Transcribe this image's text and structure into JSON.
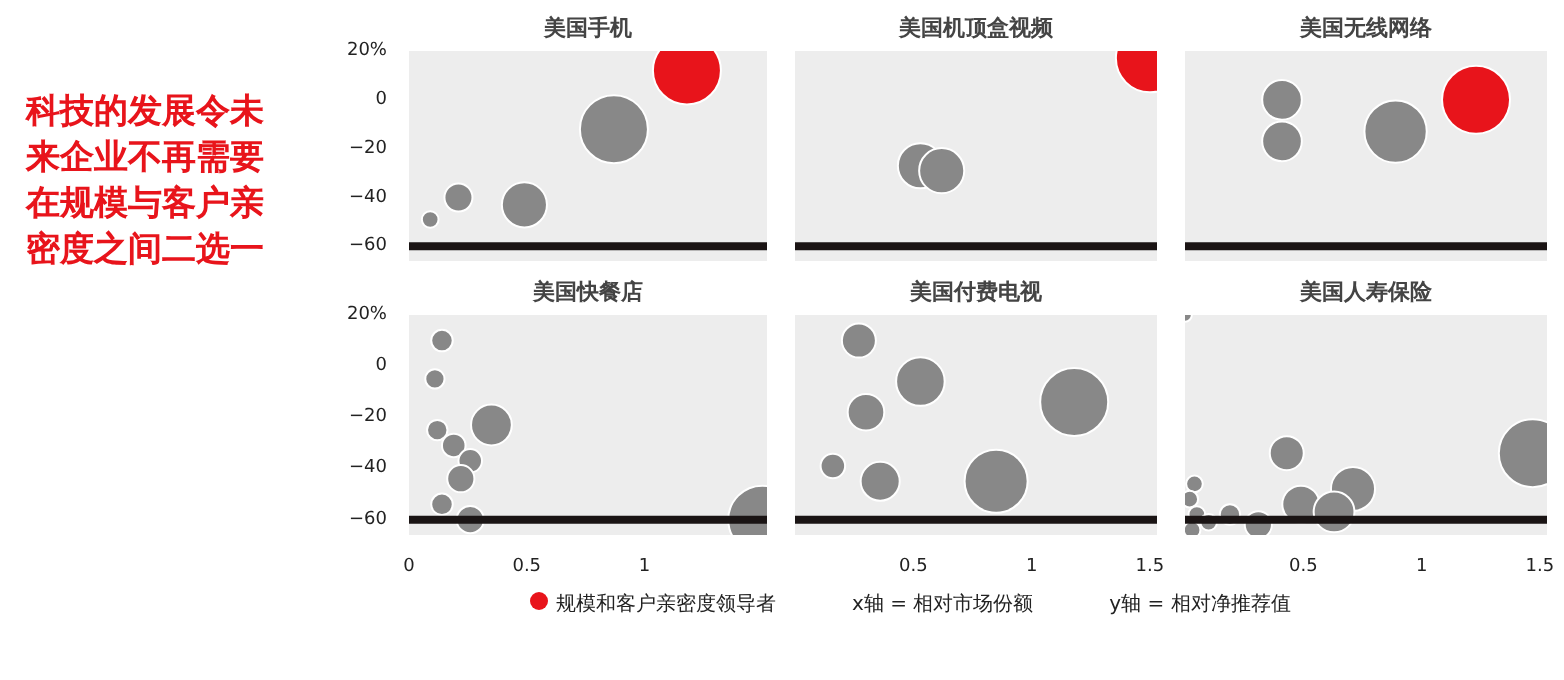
{
  "chart_data": [
    {
      "type": "other",
      "title": "科技的发展令未来企业不再需要在规模与客户亲密度之间二选一",
      "annotations": [
        "x轴 = 相对市场份额",
        "y轴 = 相对净推荐值"
      ]
    },
    {
      "type": "bubble",
      "title": "美国手机",
      "xlim": [
        0,
        1.52
      ],
      "ylim": [
        -66,
        20
      ],
      "yticks": [
        {
          "value": 20,
          "label": "20%"
        },
        0,
        -20,
        -40,
        -60
      ],
      "tick_labels": "y",
      "grid": false,
      "legend": "bottom",
      "ref_lines": [
        {
          "axis": "y",
          "value": -60,
          "color": "#1a1414"
        }
      ],
      "series": [
        {
          "color": "#888888",
          "x": [
            0.87,
            0.49,
            0.21,
            0.09
          ],
          "values": [
            -12,
            -43,
            -40,
            -49
          ],
          "sizes": [
            1,
            0.44,
            0.17,
            0.06
          ]
        },
        {
          "name": "规模和客户亲密度领导者",
          "color": "#e8141b",
          "x": [
            1.18
          ],
          "values": [
            12
          ],
          "sizes": [
            1
          ]
        }
      ]
    },
    {
      "type": "bubble",
      "title": "美国机顶盒视频",
      "xlim": [
        0,
        1.53
      ],
      "ylim": [
        -66,
        20
      ],
      "tick_labels": false,
      "grid": false,
      "ref_lines": [
        {
          "axis": "y",
          "value": -60,
          "color": "#1a1414"
        }
      ],
      "series": [
        {
          "color": "#888888",
          "x": [
            0.53,
            0.62
          ],
          "values": [
            -27,
            -29
          ],
          "sizes": [
            0.44,
            0.44
          ]
        },
        {
          "color": "#e8141b",
          "x": [
            1.5
          ],
          "values": [
            17
          ],
          "sizes": [
            1
          ]
        }
      ]
    },
    {
      "type": "bubble",
      "title": "美国无线网络",
      "xlim": [
        0,
        1.53
      ],
      "ylim": [
        -66,
        20
      ],
      "tick_labels": false,
      "grid": false,
      "ref_lines": [
        {
          "axis": "y",
          "value": -60,
          "color": "#1a1414"
        }
      ],
      "series": [
        {
          "color": "#888888",
          "x": [
            0.89,
            0.41,
            0.41
          ],
          "values": [
            -13,
            0,
            -17
          ],
          "sizes": [
            0.84,
            0.34,
            0.34
          ]
        },
        {
          "color": "#e8141b",
          "x": [
            1.23
          ],
          "values": [
            0
          ],
          "sizes": [
            1
          ]
        }
      ]
    },
    {
      "type": "bubble",
      "title": "美国快餐店",
      "xlim": [
        0,
        1.52
      ],
      "ylim": [
        -66,
        20
      ],
      "yticks": [
        {
          "value": 20,
          "label": "20%"
        },
        0,
        -20,
        -40,
        -60
      ],
      "xticks": [
        0,
        0.5,
        1
      ],
      "grid": false,
      "ref_lines": [
        {
          "axis": "y",
          "value": -60,
          "color": "#1a1414"
        }
      ],
      "series": [
        {
          "color": "#888888",
          "x": [
            0.14,
            0.11,
            0.12,
            0.35,
            0.19,
            0.26,
            0.22,
            0.14,
            0.26,
            1.5
          ],
          "values": [
            10,
            -5,
            -25,
            -23,
            -31,
            -37,
            -44,
            -54,
            -60,
            -60
          ],
          "sizes": [
            0.1,
            0.08,
            0.09,
            0.36,
            0.12,
            0.12,
            0.16,
            0.1,
            0.16,
            1
          ]
        }
      ]
    },
    {
      "type": "bubble",
      "title": "美国付费电视",
      "xlim": [
        0,
        1.53
      ],
      "ylim": [
        -66,
        20
      ],
      "xticks": [
        0.5,
        1,
        1.5
      ],
      "tick_labels": "x",
      "grid": false,
      "ref_lines": [
        {
          "axis": "y",
          "value": -60,
          "color": "#1a1414"
        }
      ],
      "series": [
        {
          "color": "#888888",
          "x": [
            0.27,
            0.53,
            0.3,
            1.18,
            0.16,
            0.36,
            0.85
          ],
          "values": [
            10,
            -6,
            -18,
            -14,
            -39,
            -45,
            -45
          ],
          "sizes": [
            0.25,
            0.51,
            0.29,
            1,
            0.13,
            0.33,
            0.86
          ]
        }
      ]
    },
    {
      "type": "bubble",
      "title": "美国人寿保险",
      "xlim": [
        0,
        1.53
      ],
      "ylim": [
        -66,
        20
      ],
      "xticks": [
        0.5,
        1,
        1.5
      ],
      "tick_labels": "x",
      "grid": false,
      "ref_lines": [
        {
          "axis": "y",
          "value": -60,
          "color": "#1a1414"
        }
      ],
      "series": [
        {
          "color": "#888888",
          "x": [
            0.0,
            0.43,
            1.47,
            0.04,
            0.71,
            0.49,
            0.63,
            0.31,
            0.19,
            0.02,
            0.05,
            0.03,
            0.1
          ],
          "values": [
            20,
            -34,
            -34,
            -46,
            -48,
            -54,
            -57,
            -62,
            -58,
            -52,
            -58,
            -64,
            -61
          ],
          "sizes": [
            0.04,
            0.25,
            1,
            0.06,
            0.42,
            0.3,
            0.36,
            0.16,
            0.09,
            0.06,
            0.06,
            0.06,
            0.06
          ]
        }
      ]
    }
  ]
}
